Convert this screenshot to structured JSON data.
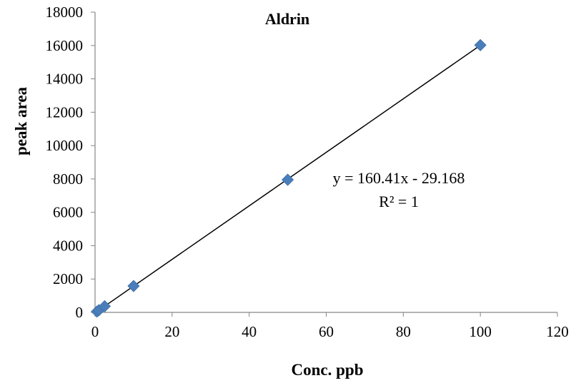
{
  "chart_data": {
    "type": "scatter",
    "title": "Aldrin",
    "xlabel": "Conc. ppb",
    "ylabel": "peak area",
    "xlim": [
      0,
      120
    ],
    "ylim": [
      0,
      18000
    ],
    "x_ticks": [
      "0",
      "20",
      "40",
      "60",
      "80",
      "100",
      "120"
    ],
    "y_ticks": [
      "0",
      "2000",
      "4000",
      "6000",
      "8000",
      "10000",
      "12000",
      "14000",
      "16000",
      "18000"
    ],
    "grid": false,
    "legend": "none",
    "series": [
      {
        "marker": "diamond",
        "color": "#4a7ebb",
        "points": [
          {
            "x": 0.5,
            "y": 50
          },
          {
            "x": 1,
            "y": 130
          },
          {
            "x": 2.5,
            "y": 370
          },
          {
            "x": 10,
            "y": 1580
          },
          {
            "x": 50,
            "y": 7950
          },
          {
            "x": 100,
            "y": 16020
          }
        ]
      }
    ],
    "trendline": {
      "type": "linear",
      "slope": 160.41,
      "intercept": -29.168,
      "x_range": [
        0.5,
        100
      ],
      "color": "#000000",
      "equation_label": "y = 160.41x - 29.168",
      "r2_label": "R² = 1"
    }
  }
}
